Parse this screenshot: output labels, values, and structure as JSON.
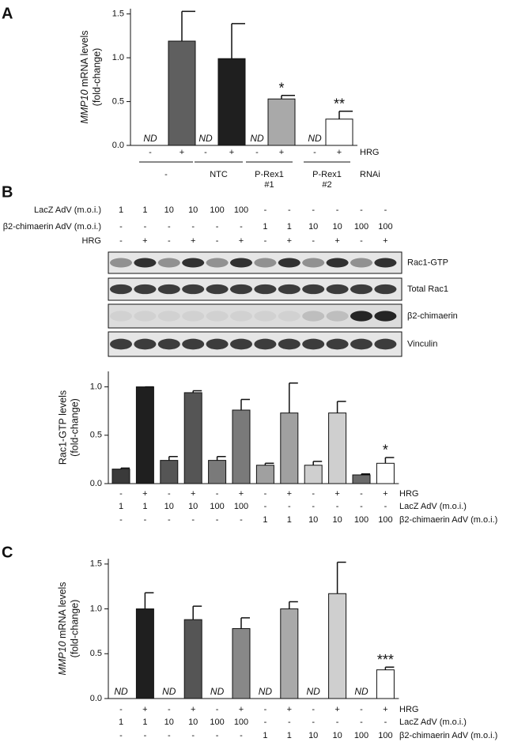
{
  "panel_labels": [
    "A",
    "B",
    "C"
  ],
  "blot": {
    "conditions": [
      {
        "label": "LacZ AdV (m.o.i.)",
        "values": [
          "1",
          "1",
          "10",
          "10",
          "100",
          "100",
          "-",
          "-",
          "-",
          "-",
          "-",
          "-"
        ]
      },
      {
        "label": "β2-chimaerin AdV (m.o.i.)",
        "values": [
          "-",
          "-",
          "-",
          "-",
          "-",
          "-",
          "1",
          "1",
          "10",
          "10",
          "100",
          "100"
        ]
      },
      {
        "label": "HRG",
        "values": [
          "-",
          "+",
          "-",
          "+",
          "-",
          "+",
          "-",
          "+",
          "-",
          "+",
          "-",
          "+"
        ]
      }
    ],
    "bands": [
      "Rac1-GTP",
      "Total Rac1",
      "β2-chimaerin",
      "Vinculin"
    ]
  },
  "chart_data": [
    {
      "type": "bar",
      "ylabel": [
        "MMP10",
        "mRNA levels",
        "(fold-change)"
      ],
      "category_label": "HRG",
      "categories": [
        "-",
        "+",
        "-",
        "+",
        "-",
        "+",
        "-",
        "+"
      ],
      "values": [
        null,
        1.19,
        null,
        0.99,
        null,
        0.53,
        null,
        0.3
      ],
      "errors": [
        null,
        0.34,
        null,
        0.4,
        null,
        0.04,
        null,
        0.09
      ],
      "value_labels": [
        "ND",
        null,
        "ND",
        null,
        "ND",
        null,
        "ND",
        null
      ],
      "annotations": [
        null,
        null,
        null,
        null,
        null,
        "*",
        null,
        "**"
      ],
      "colors": [
        null,
        "#5f5f5f",
        null,
        "#1f1f1f",
        null,
        "#a9a9a9",
        null,
        "#ffffff"
      ],
      "groups": [
        [
          "-"
        ],
        [
          "NTC"
        ],
        [
          "P-Rex1",
          "#1"
        ],
        [
          "P-Rex1",
          "#2"
        ]
      ],
      "group_label": "RNAi",
      "ylim": [
        0,
        1.56
      ],
      "yticks": [
        {
          "value": 0,
          "label": "0.0"
        },
        {
          "value": 0.5,
          "label": "0.5"
        },
        {
          "value": 1,
          "label": "1.0"
        },
        {
          "value": 1.5,
          "label": "1.5"
        }
      ]
    },
    {
      "type": "bar",
      "ylabel": [
        "Rac1-GTP levels",
        "(fold-change)"
      ],
      "category_label": "HRG",
      "categories": [
        "-",
        "+",
        "-",
        "+",
        "-",
        "+",
        "-",
        "+",
        "-",
        "+",
        "-",
        "+"
      ],
      "values": [
        0.15,
        1.0,
        0.24,
        0.94,
        0.24,
        0.76,
        0.19,
        0.73,
        0.19,
        0.73,
        0.09,
        0.21
      ],
      "errors": [
        0.01,
        0,
        0.04,
        0.02,
        0.04,
        0.11,
        0.02,
        0.31,
        0.04,
        0.12,
        0.01,
        0.06
      ],
      "annotations": [
        null,
        null,
        null,
        null,
        null,
        null,
        null,
        null,
        null,
        null,
        null,
        "*"
      ],
      "colors": [
        "#3a3a3a",
        "#1f1f1f",
        "#555555",
        "#555555",
        "#7a7a7a",
        "#7a7a7a",
        "#a0a0a0",
        "#a0a0a0",
        "#cfcfcf",
        "#cfcfcf",
        "#6a6a6a",
        "#ffffff"
      ],
      "rows": [
        {
          "label": "LacZ AdV (m.o.i.)",
          "values": [
            "1",
            "1",
            "10",
            "10",
            "100",
            "100",
            "-",
            "-",
            "-",
            "-",
            "-",
            "-"
          ]
        },
        {
          "label": "β2-chimaerin AdV (m.o.i.)",
          "values": [
            "-",
            "-",
            "-",
            "-",
            "-",
            "-",
            "1",
            "1",
            "10",
            "10",
            "100",
            "100"
          ]
        }
      ],
      "ylim": [
        0,
        1.16
      ],
      "yticks": [
        {
          "value": 0,
          "label": "0.0"
        },
        {
          "value": 0.5,
          "label": "0.5"
        },
        {
          "value": 1,
          "label": "1.0"
        }
      ]
    },
    {
      "type": "bar",
      "ylabel": [
        "MMP10",
        "mRNA levels",
        "(fold-change)"
      ],
      "category_label": "HRG",
      "categories": [
        "-",
        "+",
        "-",
        "+",
        "-",
        "+",
        "-",
        "+",
        "-",
        "+",
        "-",
        "+"
      ],
      "values": [
        null,
        1.0,
        null,
        0.88,
        null,
        0.78,
        null,
        1.0,
        null,
        1.17,
        null,
        0.32
      ],
      "errors": [
        null,
        0.18,
        null,
        0.15,
        null,
        0.12,
        null,
        0.08,
        null,
        0.35,
        null,
        0.03
      ],
      "value_labels": [
        "ND",
        null,
        "ND",
        null,
        "ND",
        null,
        "ND",
        null,
        "ND",
        null,
        "ND",
        null
      ],
      "annotations": [
        null,
        null,
        null,
        null,
        null,
        null,
        null,
        null,
        null,
        null,
        null,
        "***"
      ],
      "colors": [
        null,
        "#1f1f1f",
        null,
        "#555555",
        null,
        "#888888",
        null,
        "#a9a9a9",
        null,
        "#cfcfcf",
        null,
        "#ffffff"
      ],
      "rows": [
        {
          "label": "LacZ AdV (m.o.i.)",
          "values": [
            "1",
            "1",
            "10",
            "10",
            "100",
            "100",
            "-",
            "-",
            "-",
            "-",
            "-",
            "-"
          ]
        },
        {
          "label": "β2-chimaerin AdV (m.o.i.)",
          "values": [
            "-",
            "-",
            "-",
            "-",
            "-",
            "-",
            "1",
            "1",
            "10",
            "10",
            "100",
            "100"
          ]
        }
      ],
      "ylim": [
        0,
        1.56
      ],
      "yticks": [
        {
          "value": 0,
          "label": "0.0"
        },
        {
          "value": 0.5,
          "label": "0.5"
        },
        {
          "value": 1,
          "label": "1.0"
        },
        {
          "value": 1.5,
          "label": "1.5"
        }
      ]
    }
  ]
}
